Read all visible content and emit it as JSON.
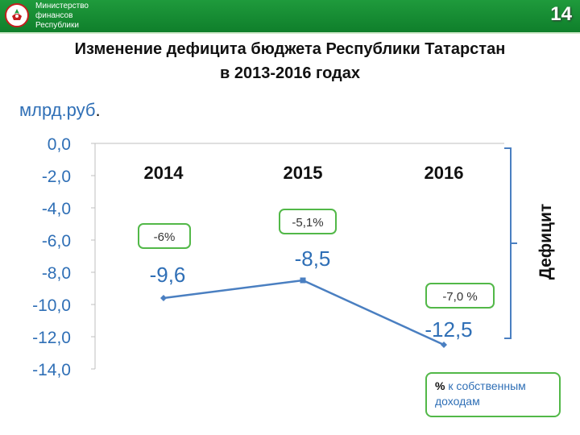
{
  "header": {
    "org_lines": [
      "Министерство",
      "финансов",
      "Республики"
    ],
    "page_number": "14"
  },
  "title_lines": [
    "Изменение дефицита бюджета Республики Татарстан",
    "в 2013-2016 годах"
  ],
  "unit_label": "млрд.руб",
  "unit_dot": ".",
  "legend": {
    "pct": "%",
    "text_1": " к собственным",
    "text_2": "доходам"
  },
  "chart_data": {
    "type": "line",
    "title": "Изменение дефицита бюджета Республики Татарстан в 2013-2016 годах",
    "ylabel": "млрд.руб.",
    "ylim": [
      -14,
      0
    ],
    "y_ticks": [
      "0,0",
      "-2,0",
      "-4,0",
      "-6,0",
      "-8,0",
      "-10,0",
      "-12,0",
      "-14,0"
    ],
    "categories": [
      "2014",
      "2015",
      "2016"
    ],
    "series": [
      {
        "values": [
          -9.6,
          -8.5,
          -12.5
        ],
        "labels": [
          "-9,6",
          "-8,5",
          "-12,5"
        ]
      }
    ],
    "percent_labels": [
      "-6%",
      "-5,1%",
      "-7,0 %"
    ],
    "bracket_label": "Дефицит",
    "colors": {
      "line": "#4a7fc1",
      "tick_text": "#2f6fb6",
      "box_border": "#52b848",
      "axis": "#bfbfbf"
    }
  }
}
